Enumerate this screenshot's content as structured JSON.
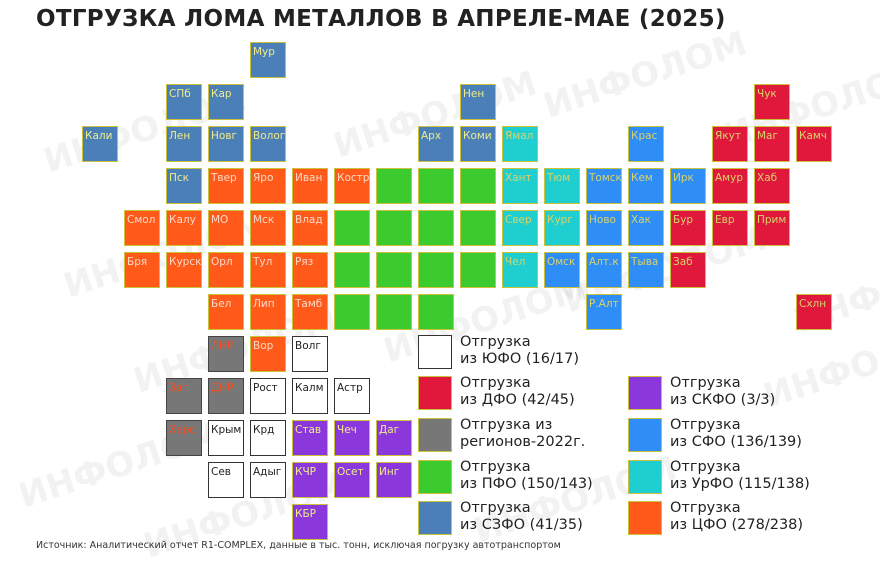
{
  "title": "ОТГРУЗКА ЛОМА МЕТАЛЛОВ В АПРЕЛЕ-МАЕ (2025)",
  "watermark": "ИНФОЛОМ",
  "source": "Источник: Аналитический отчет R1-COMPLEX,  данные в тыс. тонн, исключая погрузку автотранспортом",
  "colors": {
    "szfo": "#4a7fb8",
    "cfo": "#ff5a1a",
    "pfo": "#3ccb2e",
    "urfo": "#1fcfcf",
    "sfo": "#2f8ef5",
    "dfo": "#e0183c",
    "skfo": "#8a38dc",
    "yufo": "#ffffff",
    "reg2022": "#777777"
  },
  "legend": [
    {
      "fo": "yufo",
      "line1": "Отгрузка",
      "line2": "из ЮФО (16/17)"
    },
    {
      "fo": "dfo",
      "line1": "Отгрузка",
      "line2": "из ДФО (42/45)"
    },
    {
      "fo": "reg2022",
      "line1": "Отгрузка из",
      "line2": "регионов-2022г."
    },
    {
      "fo": "pfo",
      "line1": "Отгрузка",
      "line2": "из ПФО (150/143)"
    },
    {
      "fo": "szfo",
      "line1": "Отгрузка",
      "line2": "из СЗФО (41/35)"
    },
    {
      "fo": "skfo",
      "line1": "Отгрузка",
      "line2": "из СКФО (3/3)"
    },
    {
      "fo": "sfo",
      "line1": "Отгрузка",
      "line2": "из СФО (136/139)"
    },
    {
      "fo": "urfo",
      "line1": "Отгрузка",
      "line2": "из УрФО (115/138)"
    },
    {
      "fo": "cfo",
      "line1": "Отгрузка",
      "line2": "из ЦФО (278/238)"
    }
  ],
  "regions": [
    {
      "label": "Мур",
      "fo": "szfo",
      "col": 5,
      "row": 0
    },
    {
      "label": "СПб",
      "fo": "szfo",
      "col": 3,
      "row": 1
    },
    {
      "label": "Кар",
      "fo": "szfo",
      "col": 4,
      "row": 1
    },
    {
      "label": "Нен",
      "fo": "szfo",
      "col": 10,
      "row": 1
    },
    {
      "label": "Чук",
      "fo": "dfo",
      "col": 17,
      "row": 1
    },
    {
      "label": "Кали",
      "fo": "szfo",
      "col": 1,
      "row": 2
    },
    {
      "label": "Лен",
      "fo": "szfo",
      "col": 3,
      "row": 2
    },
    {
      "label": "Новг",
      "fo": "szfo",
      "col": 4,
      "row": 2
    },
    {
      "label": "Волог",
      "fo": "szfo",
      "col": 5,
      "row": 2
    },
    {
      "label": "Арх",
      "fo": "szfo",
      "col": 9,
      "row": 2
    },
    {
      "label": "Коми",
      "fo": "szfo",
      "col": 10,
      "row": 2
    },
    {
      "label": "Ямал",
      "fo": "urfo",
      "col": 11,
      "row": 2
    },
    {
      "label": "Крас",
      "fo": "sfo",
      "col": 14,
      "row": 2
    },
    {
      "label": "Якут",
      "fo": "dfo",
      "col": 16,
      "row": 2
    },
    {
      "label": "Маг",
      "fo": "dfo",
      "col": 17,
      "row": 2
    },
    {
      "label": "Камч",
      "fo": "dfo",
      "col": 18,
      "row": 2
    },
    {
      "label": "Пск",
      "fo": "szfo",
      "col": 3,
      "row": 3
    },
    {
      "label": "Твер",
      "fo": "cfo",
      "col": 4,
      "row": 3
    },
    {
      "label": "Яро",
      "fo": "cfo",
      "col": 5,
      "row": 3
    },
    {
      "label": "Иван",
      "fo": "cfo",
      "col": 6,
      "row": 3
    },
    {
      "label": "Костр",
      "fo": "cfo",
      "col": 7,
      "row": 3
    },
    {
      "label": "",
      "fo": "pfo",
      "col": 8,
      "row": 3
    },
    {
      "label": "",
      "fo": "pfo",
      "col": 9,
      "row": 3
    },
    {
      "label": "",
      "fo": "pfo",
      "col": 10,
      "row": 3
    },
    {
      "label": "Хант",
      "fo": "urfo",
      "col": 11,
      "row": 3
    },
    {
      "label": "Тюм",
      "fo": "urfo",
      "col": 12,
      "row": 3
    },
    {
      "label": "Томск",
      "fo": "sfo",
      "col": 13,
      "row": 3
    },
    {
      "label": "Кем",
      "fo": "sfo",
      "col": 14,
      "row": 3
    },
    {
      "label": "Ирк",
      "fo": "sfo",
      "col": 15,
      "row": 3
    },
    {
      "label": "Амур",
      "fo": "dfo",
      "col": 16,
      "row": 3
    },
    {
      "label": "Хаб",
      "fo": "dfo",
      "col": 17,
      "row": 3
    },
    {
      "label": "Смол",
      "fo": "cfo",
      "col": 2,
      "row": 4
    },
    {
      "label": "Калу",
      "fo": "cfo",
      "col": 3,
      "row": 4
    },
    {
      "label": "МО",
      "fo": "cfo",
      "col": 4,
      "row": 4
    },
    {
      "label": "Мск",
      "fo": "cfo",
      "col": 5,
      "row": 4
    },
    {
      "label": "Влад",
      "fo": "cfo",
      "col": 6,
      "row": 4
    },
    {
      "label": "",
      "fo": "pfo",
      "col": 7,
      "row": 4
    },
    {
      "label": "",
      "fo": "pfo",
      "col": 8,
      "row": 4
    },
    {
      "label": "",
      "fo": "pfo",
      "col": 9,
      "row": 4
    },
    {
      "label": "",
      "fo": "pfo",
      "col": 10,
      "row": 4
    },
    {
      "label": "Свер",
      "fo": "urfo",
      "col": 11,
      "row": 4
    },
    {
      "label": "Кург",
      "fo": "urfo",
      "col": 12,
      "row": 4
    },
    {
      "label": "Ново",
      "fo": "sfo",
      "col": 13,
      "row": 4
    },
    {
      "label": "Хак",
      "fo": "sfo",
      "col": 14,
      "row": 4
    },
    {
      "label": "Бур",
      "fo": "dfo",
      "col": 15,
      "row": 4
    },
    {
      "label": "Евр",
      "fo": "dfo",
      "col": 16,
      "row": 4
    },
    {
      "label": "Прим",
      "fo": "dfo",
      "col": 17,
      "row": 4
    },
    {
      "label": "Бря",
      "fo": "cfo",
      "col": 2,
      "row": 5
    },
    {
      "label": "Курск",
      "fo": "cfo",
      "col": 3,
      "row": 5
    },
    {
      "label": "Орл",
      "fo": "cfo",
      "col": 4,
      "row": 5
    },
    {
      "label": "Тул",
      "fo": "cfo",
      "col": 5,
      "row": 5
    },
    {
      "label": "Ряз",
      "fo": "cfo",
      "col": 6,
      "row": 5
    },
    {
      "label": "",
      "fo": "pfo",
      "col": 7,
      "row": 5
    },
    {
      "label": "",
      "fo": "pfo",
      "col": 8,
      "row": 5
    },
    {
      "label": "",
      "fo": "pfo",
      "col": 9,
      "row": 5
    },
    {
      "label": "",
      "fo": "pfo",
      "col": 10,
      "row": 5
    },
    {
      "label": "Чел",
      "fo": "urfo",
      "col": 11,
      "row": 5
    },
    {
      "label": "Омск",
      "fo": "sfo",
      "col": 12,
      "row": 5
    },
    {
      "label": "Алт.к",
      "fo": "sfo",
      "col": 13,
      "row": 5
    },
    {
      "label": "Тыва",
      "fo": "sfo",
      "col": 14,
      "row": 5
    },
    {
      "label": "Заб",
      "fo": "dfo",
      "col": 15,
      "row": 5
    },
    {
      "label": "Бел",
      "fo": "cfo",
      "col": 4,
      "row": 6
    },
    {
      "label": "Лип",
      "fo": "cfo",
      "col": 5,
      "row": 6
    },
    {
      "label": "Тамб",
      "fo": "cfo",
      "col": 6,
      "row": 6
    },
    {
      "label": "",
      "fo": "pfo",
      "col": 7,
      "row": 6
    },
    {
      "label": "",
      "fo": "pfo",
      "col": 8,
      "row": 6
    },
    {
      "label": "",
      "fo": "pfo",
      "col": 9,
      "row": 6
    },
    {
      "label": "Р.Алт",
      "fo": "sfo",
      "col": 13,
      "row": 6
    },
    {
      "label": "Схлн",
      "fo": "dfo",
      "col": 18,
      "row": 6
    },
    {
      "label": "ЛНР",
      "fo": "reg2022",
      "col": 4,
      "row": 7
    },
    {
      "label": "Вор",
      "fo": "cfo",
      "col": 5,
      "row": 7
    },
    {
      "label": "Волг",
      "fo": "yufo",
      "col": 6,
      "row": 7
    },
    {
      "label": "Зап",
      "fo": "reg2022",
      "col": 3,
      "row": 8
    },
    {
      "label": "ДНР",
      "fo": "reg2022",
      "col": 4,
      "row": 8
    },
    {
      "label": "Рост",
      "fo": "yufo",
      "col": 5,
      "row": 8
    },
    {
      "label": "Калм",
      "fo": "yufo",
      "col": 6,
      "row": 8
    },
    {
      "label": "Астр",
      "fo": "yufo",
      "col": 7,
      "row": 8
    },
    {
      "label": "Херс",
      "fo": "reg2022",
      "col": 3,
      "row": 9
    },
    {
      "label": "Крым",
      "fo": "yufo",
      "col": 4,
      "row": 9
    },
    {
      "label": "Крд",
      "fo": "yufo",
      "col": 5,
      "row": 9
    },
    {
      "label": "Став",
      "fo": "skfo",
      "col": 6,
      "row": 9
    },
    {
      "label": "Чеч",
      "fo": "skfo",
      "col": 7,
      "row": 9
    },
    {
      "label": "Даг",
      "fo": "skfo",
      "col": 8,
      "row": 9
    },
    {
      "label": "Сев",
      "fo": "yufo",
      "col": 4,
      "row": 10
    },
    {
      "label": "Адыг",
      "fo": "yufo",
      "col": 5,
      "row": 10
    },
    {
      "label": "КЧР",
      "fo": "skfo",
      "col": 6,
      "row": 10
    },
    {
      "label": "Осет",
      "fo": "skfo",
      "col": 7,
      "row": 10
    },
    {
      "label": "Инг",
      "fo": "skfo",
      "col": 8,
      "row": 10
    },
    {
      "label": "КБР",
      "fo": "skfo",
      "col": 6,
      "row": 11
    }
  ]
}
